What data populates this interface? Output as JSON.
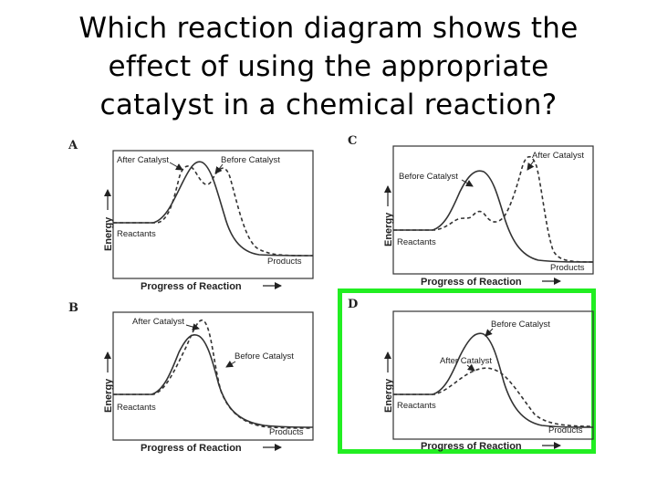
{
  "question": {
    "line1": "Which reaction diagram shows the",
    "line2": "effect of using the appropriate",
    "line3": "catalyst in a chemical reaction?"
  },
  "panels": [
    {
      "letter": "A",
      "labels": {
        "after": "After Catalyst",
        "before": "Before Catalyst",
        "reactants": "Reactants",
        "products": "Products"
      },
      "y_axis": "Energy",
      "x_axis": "Progress of Reaction"
    },
    {
      "letter": "C",
      "labels": {
        "after": "After Catalyst",
        "before": "Before Catalyst",
        "reactants": "Reactants",
        "products": "Products"
      },
      "y_axis": "Energy",
      "x_axis": "Progress of Reaction"
    },
    {
      "letter": "B",
      "labels": {
        "after": "After Catalyst",
        "before": "Before Catalyst",
        "reactants": "Reactants",
        "products": "Products"
      },
      "y_axis": "Energy",
      "x_axis": "Progress of Reaction"
    },
    {
      "letter": "D",
      "labels": {
        "after": "After Catalyst",
        "before": "Before Catalyst",
        "reactants": "Reactants",
        "products": "Products"
      },
      "y_axis": "Energy",
      "x_axis": "Progress of Reaction"
    }
  ],
  "highlight": {
    "panel": "D",
    "color": "#22ee22"
  },
  "colors": {
    "curve": "#333333",
    "text": "#000000"
  }
}
